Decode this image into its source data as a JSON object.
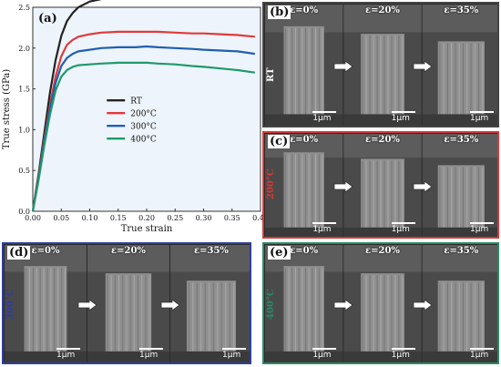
{
  "chart_data": {
    "type": "line",
    "panel_label": "(a)",
    "xlabel": "True strain",
    "ylabel": "True stress (GPa)",
    "xlim": [
      0.0,
      0.4
    ],
    "ylim": [
      0.0,
      2.5
    ],
    "xticks": [
      "0.00",
      "0.05",
      "0.10",
      "0.15",
      "0.20",
      "0.25",
      "0.30",
      "0.35",
      "0.40"
    ],
    "yticks": [
      "0.0",
      "0.5",
      "1.0",
      "1.5",
      "2.0",
      "2.5"
    ],
    "legend_position": "center",
    "series": [
      {
        "name": "RT",
        "color": "#222222",
        "x": [
          0.0,
          0.01,
          0.02,
          0.03,
          0.04,
          0.05,
          0.06,
          0.07,
          0.08,
          0.1,
          0.12,
          0.15,
          0.18,
          0.2,
          0.22,
          0.25,
          0.28,
          0.3,
          0.33,
          0.36,
          0.385
        ],
        "y": [
          0.0,
          0.45,
          0.95,
          1.45,
          1.85,
          2.15,
          2.33,
          2.43,
          2.5,
          2.57,
          2.6,
          2.63,
          2.65,
          2.66,
          2.66,
          2.65,
          2.64,
          2.63,
          2.62,
          2.61,
          2.6
        ]
      },
      {
        "name": "200°C",
        "color": "#e03a3a",
        "x": [
          0.0,
          0.01,
          0.02,
          0.03,
          0.04,
          0.05,
          0.06,
          0.07,
          0.08,
          0.1,
          0.12,
          0.15,
          0.18,
          0.2,
          0.22,
          0.25,
          0.28,
          0.3,
          0.33,
          0.36,
          0.39
        ],
        "y": [
          0.0,
          0.42,
          0.88,
          1.3,
          1.65,
          1.9,
          2.04,
          2.1,
          2.14,
          2.17,
          2.19,
          2.2,
          2.2,
          2.2,
          2.2,
          2.19,
          2.18,
          2.18,
          2.17,
          2.16,
          2.14
        ]
      },
      {
        "name": "300°C",
        "color": "#1f5fb0",
        "x": [
          0.0,
          0.01,
          0.02,
          0.03,
          0.04,
          0.05,
          0.06,
          0.07,
          0.08,
          0.1,
          0.12,
          0.15,
          0.18,
          0.2,
          0.22,
          0.25,
          0.28,
          0.3,
          0.33,
          0.36,
          0.39
        ],
        "y": [
          0.0,
          0.4,
          0.85,
          1.25,
          1.57,
          1.78,
          1.88,
          1.93,
          1.96,
          1.98,
          2.0,
          2.01,
          2.01,
          2.02,
          2.01,
          2.0,
          1.99,
          1.98,
          1.97,
          1.96,
          1.93
        ]
      },
      {
        "name": "400°C",
        "color": "#1e9a6a",
        "x": [
          0.0,
          0.01,
          0.02,
          0.03,
          0.04,
          0.05,
          0.06,
          0.07,
          0.08,
          0.1,
          0.12,
          0.15,
          0.18,
          0.2,
          0.22,
          0.25,
          0.28,
          0.3,
          0.33,
          0.36,
          0.39
        ],
        "y": [
          0.0,
          0.38,
          0.8,
          1.18,
          1.48,
          1.65,
          1.73,
          1.77,
          1.79,
          1.8,
          1.81,
          1.82,
          1.82,
          1.82,
          1.81,
          1.8,
          1.78,
          1.77,
          1.75,
          1.73,
          1.7
        ]
      }
    ]
  },
  "sem_panels": [
    {
      "label": "(b)",
      "temperature": "RT",
      "frame_color": "#ffffff",
      "temp_color": "#ffffff",
      "strains": [
        "ε=0%",
        "ε=20%",
        "ε=35%"
      ],
      "scale": "1μm"
    },
    {
      "label": "(c)",
      "temperature": "200°C",
      "frame_color": "#d33a3a",
      "temp_color": "#d33a3a",
      "strains": [
        "ε=0%",
        "ε=20%",
        "ε=35%"
      ],
      "scale": "1μm"
    },
    {
      "label": "(d)",
      "temperature": "300°C",
      "frame_color": "#2e3f9e",
      "temp_color": "#2e3f9e",
      "strains": [
        "ε=0%",
        "ε=20%",
        "ε=35%"
      ],
      "scale": "1μm"
    },
    {
      "label": "(e)",
      "temperature": "400°C",
      "frame_color": "#2a8a66",
      "temp_color": "#2a8a66",
      "strains": [
        "ε=0%",
        "ε=20%",
        "ε=35%"
      ],
      "scale": "1μm"
    }
  ]
}
